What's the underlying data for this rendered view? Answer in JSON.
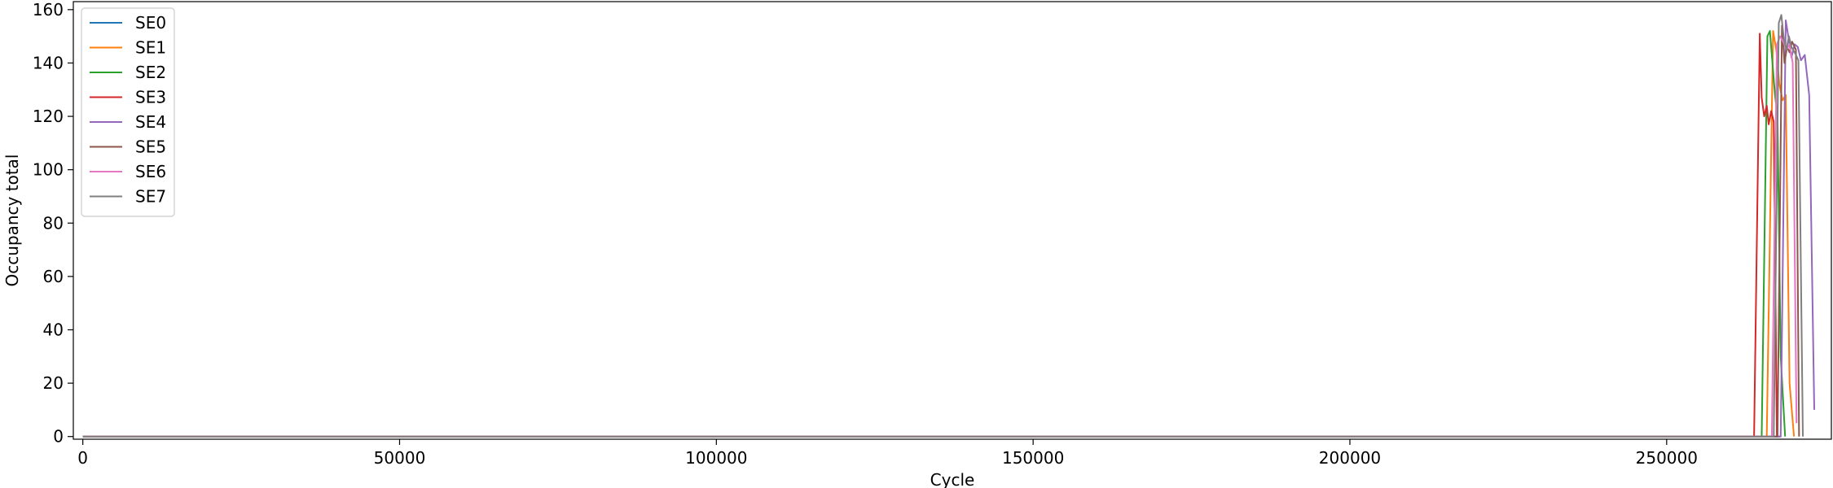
{
  "chart_data": {
    "type": "line",
    "title": "",
    "xlabel": "Cycle",
    "ylabel": "Occupancy total",
    "xlim": [
      -1500,
      276000
    ],
    "ylim": [
      -1,
      163
    ],
    "x_ticks": [
      0,
      50000,
      100000,
      150000,
      200000,
      250000
    ],
    "y_ticks": [
      0,
      20,
      40,
      60,
      80,
      100,
      120,
      140,
      160
    ],
    "grid": false,
    "legend": {
      "placement": "top-left"
    },
    "series": [
      {
        "name": "SE0",
        "color": "#1f77b4",
        "x": [
          0,
          264500,
          265200,
          266000,
          267000,
          268000
        ],
        "y": [
          0,
          0,
          0,
          0,
          0,
          0
        ]
      },
      {
        "name": "SE1",
        "color": "#ff7f0e",
        "x": [
          0,
          265800,
          266800,
          267300,
          267800,
          268300,
          268800,
          269400,
          270100
        ],
        "y": [
          0,
          0,
          152,
          145,
          132,
          126,
          128,
          20,
          0
        ]
      },
      {
        "name": "SE2",
        "color": "#2ca02c",
        "x": [
          0,
          265000,
          265900,
          266300,
          266700,
          267100,
          267500,
          268000,
          268700
        ],
        "y": [
          0,
          0,
          150,
          152,
          140,
          128,
          120,
          30,
          0
        ]
      },
      {
        "name": "SE3",
        "color": "#d62728",
        "x": [
          0,
          263800,
          264700,
          265000,
          265400,
          265800,
          266100,
          266500,
          266900,
          267400
        ],
        "y": [
          0,
          0,
          151,
          127,
          120,
          124,
          117,
          122,
          118,
          0
        ]
      },
      {
        "name": "SE4",
        "color": "#9467bd",
        "x": [
          0,
          268000,
          268800,
          269200,
          269700,
          270200,
          270700,
          271200,
          271800,
          272500,
          273300
        ],
        "y": [
          0,
          0,
          156,
          150,
          142,
          147,
          146,
          141,
          143,
          128,
          10
        ]
      },
      {
        "name": "SE5",
        "color": "#8c564b",
        "x": [
          0,
          267500,
          268200,
          268600,
          269000,
          269400,
          269800,
          270400,
          270900
        ],
        "y": [
          0,
          0,
          154,
          140,
          146,
          144,
          148,
          145,
          0
        ]
      },
      {
        "name": "SE6",
        "color": "#e377c2",
        "x": [
          0,
          266600,
          267400,
          267900,
          268400,
          268900,
          269400,
          269900,
          270500
        ],
        "y": [
          0,
          0,
          147,
          150,
          148,
          145,
          147,
          140,
          5
        ]
      },
      {
        "name": "SE7",
        "color": "#7f7f7f",
        "x": [
          0,
          266900,
          267700,
          268100,
          268500,
          268900,
          269300,
          269700,
          270200,
          270800,
          271500
        ],
        "y": [
          0,
          0,
          155,
          158,
          149,
          145,
          150,
          146,
          144,
          141,
          0
        ]
      }
    ]
  }
}
